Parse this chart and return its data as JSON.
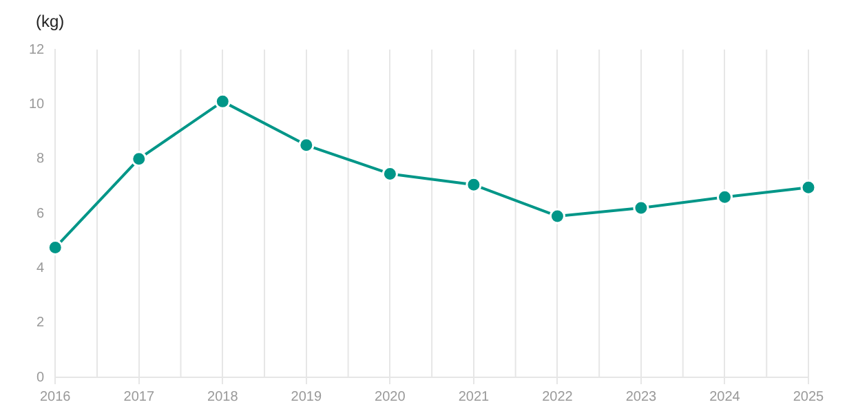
{
  "chart_data": {
    "type": "line",
    "ylabel": "(kg)",
    "categories": [
      "2016",
      "2017",
      "2018",
      "2019",
      "2020",
      "2021",
      "2022",
      "2023",
      "2024",
      "2025"
    ],
    "series": [
      {
        "color": "#009688",
        "values": [
          4.75,
          8.0,
          10.1,
          8.5,
          7.45,
          7.05,
          5.9,
          6.2,
          6.6,
          6.95
        ]
      }
    ],
    "ylim": [
      0,
      12
    ],
    "yticks": [
      0,
      2,
      4,
      6,
      8,
      10,
      12
    ],
    "grid": "x",
    "legend": false,
    "marker": "circle",
    "line_style": "solid"
  }
}
